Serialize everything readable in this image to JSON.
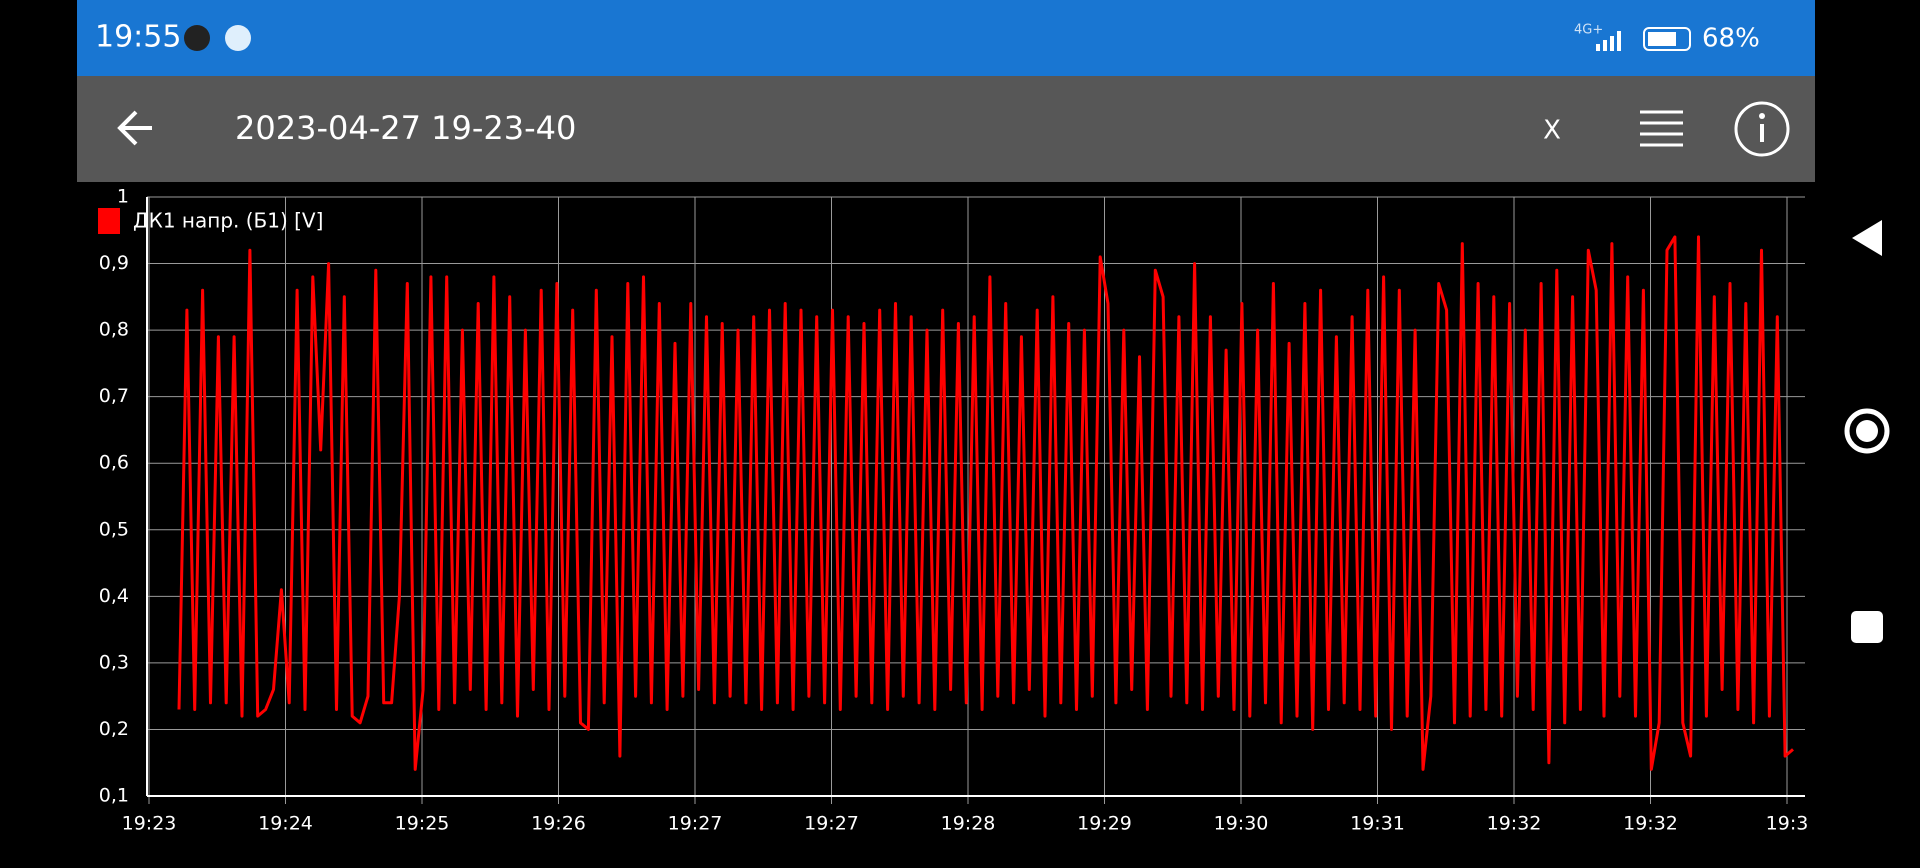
{
  "status_bar": {
    "time": "19:55",
    "network": "4G+",
    "battery": "68%"
  },
  "toolbar": {
    "title": "2023-04-27 19-23-40",
    "close": "X"
  },
  "chart_data": {
    "type": "line",
    "x_labels": [
      "19:23",
      "19:24",
      "19:25",
      "19:26",
      "19:27",
      "19:27",
      "19:28",
      "19:29",
      "19:30",
      "19:31",
      "19:32",
      "19:32",
      "19:3"
    ],
    "ylim": [
      0.1,
      1
    ],
    "yticks": [
      {
        "value": 0.1,
        "label": "0,1"
      },
      {
        "value": 0.2,
        "label": "0,2"
      },
      {
        "value": 0.3,
        "label": "0,3"
      },
      {
        "value": 0.4,
        "label": "0,4"
      },
      {
        "value": 0.5,
        "label": "0,5"
      },
      {
        "value": 0.6,
        "label": "0,6"
      },
      {
        "value": 0.7,
        "label": "0,7"
      },
      {
        "value": 0.8,
        "label": "0,8"
      },
      {
        "value": 0.9,
        "label": "0,9"
      },
      1
    ],
    "grid": true,
    "series": [
      {
        "name": "ДК1 напр. (Б1) [V]",
        "color": "#ff0000",
        "values": [
          0.23,
          0.83,
          0.23,
          0.86,
          0.24,
          0.79,
          0.24,
          0.79,
          0.22,
          0.92,
          0.22,
          0.23,
          0.26,
          0.41,
          0.24,
          0.86,
          0.23,
          0.88,
          0.62,
          0.9,
          0.23,
          0.85,
          0.22,
          0.21,
          0.25,
          0.89,
          0.24,
          0.24,
          0.4,
          0.87,
          0.14,
          0.26,
          0.88,
          0.23,
          0.88,
          0.24,
          0.8,
          0.26,
          0.84,
          0.23,
          0.88,
          0.24,
          0.85,
          0.22,
          0.8,
          0.26,
          0.86,
          0.23,
          0.87,
          0.25,
          0.83,
          0.21,
          0.2,
          0.86,
          0.24,
          0.79,
          0.16,
          0.87,
          0.25,
          0.88,
          0.24,
          0.84,
          0.23,
          0.78,
          0.25,
          0.84,
          0.26,
          0.82,
          0.24,
          0.81,
          0.25,
          0.8,
          0.24,
          0.82,
          0.23,
          0.83,
          0.24,
          0.84,
          0.23,
          0.83,
          0.25,
          0.82,
          0.24,
          0.83,
          0.23,
          0.82,
          0.25,
          0.81,
          0.24,
          0.83,
          0.23,
          0.84,
          0.25,
          0.82,
          0.24,
          0.8,
          0.23,
          0.83,
          0.26,
          0.81,
          0.24,
          0.82,
          0.23,
          0.88,
          0.25,
          0.84,
          0.24,
          0.79,
          0.26,
          0.83,
          0.22,
          0.85,
          0.24,
          0.81,
          0.23,
          0.8,
          0.25,
          0.91,
          0.84,
          0.24,
          0.8,
          0.26,
          0.76,
          0.23,
          0.89,
          0.85,
          0.25,
          0.82,
          0.24,
          0.9,
          0.23,
          0.82,
          0.25,
          0.77,
          0.23,
          0.84,
          0.22,
          0.8,
          0.24,
          0.87,
          0.21,
          0.78,
          0.22,
          0.84,
          0.2,
          0.86,
          0.23,
          0.79,
          0.24,
          0.82,
          0.23,
          0.86,
          0.22,
          0.88,
          0.2,
          0.86,
          0.22,
          0.8,
          0.14,
          0.25,
          0.87,
          0.83,
          0.21,
          0.93,
          0.22,
          0.87,
          0.23,
          0.85,
          0.22,
          0.84,
          0.25,
          0.8,
          0.23,
          0.87,
          0.15,
          0.89,
          0.21,
          0.85,
          0.23,
          0.92,
          0.86,
          0.22,
          0.93,
          0.25,
          0.88,
          0.22,
          0.86,
          0.14,
          0.21,
          0.92,
          0.94,
          0.21,
          0.16,
          0.94,
          0.22,
          0.85,
          0.26,
          0.87,
          0.23,
          0.84,
          0.21,
          0.92,
          0.22,
          0.82,
          0.16,
          0.17
        ]
      }
    ]
  }
}
